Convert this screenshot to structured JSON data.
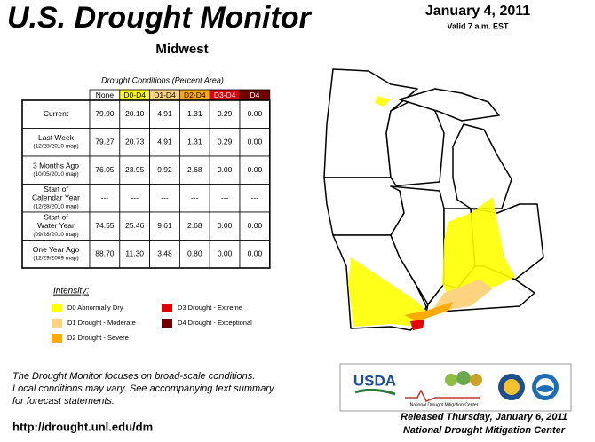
{
  "header": {
    "title": "U.S. Drought Monitor",
    "region": "Midwest",
    "date": "January 4, 2011",
    "valid": "Valid 7 a.m. EST"
  },
  "table": {
    "caption": "Drought Conditions (Percent Area)",
    "columns": [
      {
        "label": "None",
        "color": "#ffffff",
        "text": "#000000"
      },
      {
        "label": "D0-D4",
        "color": "#ffff00",
        "text": "#000000"
      },
      {
        "label": "D1-D4",
        "color": "#fcd37f",
        "text": "#000000"
      },
      {
        "label": "D2-D4",
        "color": "#ffaa00",
        "text": "#000000"
      },
      {
        "label": "D3-D4",
        "color": "#e60000",
        "text": "#ffffff"
      },
      {
        "label": "D4",
        "color": "#730000",
        "text": "#ffffff"
      }
    ],
    "rows": [
      {
        "label": [
          "Current"
        ],
        "values": [
          "79.90",
          "20.10",
          "4.91",
          "1.31",
          "0.29",
          "0.00"
        ]
      },
      {
        "label": [
          "Last Week"
        ],
        "note": "(12/28/2010 map)",
        "values": [
          "79.27",
          "20.73",
          "4.91",
          "1.31",
          "0.29",
          "0.00"
        ]
      },
      {
        "label": [
          "3 Months Ago"
        ],
        "note": "(10/05/2010 map)",
        "values": [
          "76.05",
          "23.95",
          "9.92",
          "2.68",
          "0.00",
          "0.00"
        ]
      },
      {
        "label": [
          "Start of",
          "Calendar Year"
        ],
        "note": "(12/28/2010 map)",
        "values": [
          "---",
          "---",
          "---",
          "---",
          "---",
          "---"
        ]
      },
      {
        "label": [
          "Start of",
          "Water Year"
        ],
        "note": "(09/28/2010 map)",
        "values": [
          "74.55",
          "25.46",
          "9.61",
          "2.68",
          "0.00",
          "0.00"
        ]
      },
      {
        "label": [
          "One Year Ago"
        ],
        "note": "(12/29/2009 map)",
        "values": [
          "88.70",
          "11.30",
          "3.48",
          "0.80",
          "0.00",
          "0.00"
        ]
      }
    ]
  },
  "legend": {
    "title": "Intensity:",
    "items": [
      {
        "label": "D0 Abnormally Dry",
        "color": "#ffff00"
      },
      {
        "label": "D1 Drought - Moderate",
        "color": "#fcd37f"
      },
      {
        "label": "D2 Drought - Severe",
        "color": "#ffaa00"
      },
      {
        "label": "D3 Drought - Extreme",
        "color": "#e60000"
      },
      {
        "label": "D4 Drought - Exceptional",
        "color": "#730000"
      }
    ]
  },
  "footer": {
    "note": [
      "The Drought Monitor focuses on broad-scale conditions.",
      "Local conditions may vary. See accompanying text summary",
      "for forecast statements."
    ],
    "url": "http://drought.unl.edu/dm",
    "released": "Released Thursday, January 6, 2011",
    "author": "National Drought Mitigation Center"
  },
  "logos": {
    "usda": "USDA",
    "ndmc": "National Drought Mitigation Center"
  }
}
